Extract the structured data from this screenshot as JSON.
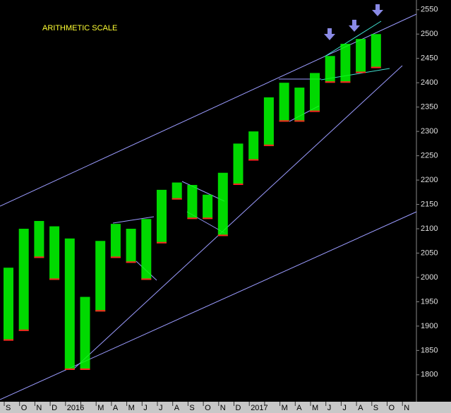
{
  "chart_data": {
    "type": "range-bar",
    "annotation": "ARITHMETIC SCALE",
    "categories": [
      "S",
      "O",
      "N",
      "D",
      "2016",
      null,
      "M",
      "A",
      "M",
      "J",
      "J",
      "A",
      "S",
      "O",
      "N",
      "D",
      "2017",
      null,
      "M",
      "A",
      "M",
      "J",
      "J",
      "A",
      "S",
      "O",
      "N"
    ],
    "series": [
      {
        "name": "high",
        "color": "#00ff00",
        "values": [
          2020,
          2100,
          2116,
          2105,
          2080,
          1960,
          2075,
          2110,
          2100,
          2120,
          2180,
          2195,
          2190,
          2170,
          2215,
          2275,
          2300,
          2370,
          2400,
          2390,
          2420,
          2455,
          2480,
          2490,
          2500,
          null,
          null
        ]
      },
      {
        "name": "low",
        "color": "#ff2020",
        "values": [
          1870,
          1890,
          2040,
          1995,
          1810,
          1810,
          1930,
          2040,
          2030,
          1995,
          2070,
          2160,
          2120,
          2120,
          2085,
          2190,
          2240,
          2270,
          2320,
          2320,
          2340,
          2400,
          2400,
          2420,
          2430,
          null,
          null
        ]
      }
    ],
    "ylim": [
      1749,
      2570
    ],
    "yticks": [
      1800,
      1850,
      1900,
      1950,
      2000,
      2050,
      2100,
      2150,
      2200,
      2250,
      2300,
      2350,
      2400,
      2450,
      2500,
      2550
    ]
  }
}
